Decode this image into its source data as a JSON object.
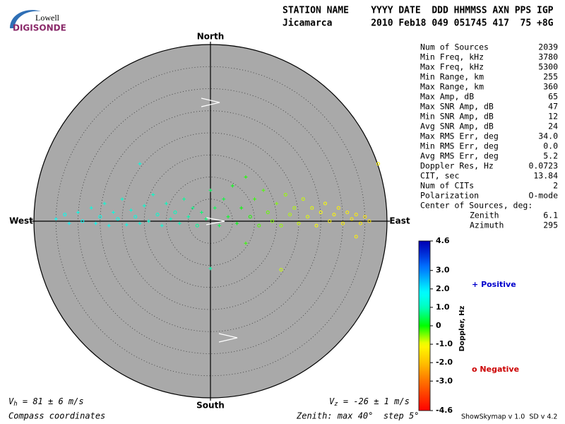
{
  "logo": {
    "top": "Lowell",
    "bottom": "DIGISONDE"
  },
  "header": {
    "labels": "STATION NAME    YYYY DATE  DDD HHMMSS AXN PPS IGP",
    "values": "Jicamarca       2010 Feb18 049 051745 417  75 +8G"
  },
  "stats": [
    [
      "Num of Sources",
      "2039"
    ],
    [
      "Min Freq, kHz",
      "3780"
    ],
    [
      "Max Freq, kHz",
      "5300"
    ],
    [
      "Min Range, km",
      "255"
    ],
    [
      "Max Range, km",
      "360"
    ],
    [
      "Max Amp, dB",
      "65"
    ],
    [
      "Max SNR Amp, dB",
      "47"
    ],
    [
      "Min SNR Amp, dB",
      "12"
    ],
    [
      "Avg SNR Amp, dB",
      "24"
    ],
    [
      "Max RMS Err, deg",
      "34.0"
    ],
    [
      "Min RMS Err, deg",
      "0.0"
    ],
    [
      "Avg RMS Err, deg",
      "5.2"
    ],
    [
      "Doppler Res, Hz",
      "0.0723"
    ],
    [
      "CIT, sec",
      "13.84"
    ],
    [
      "Num of CITs",
      "2"
    ],
    [
      "Polarization",
      "O-mode"
    ]
  ],
  "center": {
    "title": "Center of Sources, deg:",
    "rows": [
      [
        "Zenith",
        "6.1"
      ],
      [
        "Azimuth",
        "295"
      ]
    ]
  },
  "footer": {
    "left": "Compass coordinates",
    "middle": "Zenith: max 40°  step 5°",
    "right": "ShowSkymap v 1.0  SD v 4.2"
  },
  "chart_data": {
    "type": "skymap",
    "compass": {
      "north": "North",
      "south": "South",
      "west": "West",
      "east": "East"
    },
    "rlim": [
      0,
      40
    ],
    "rticks": [
      5,
      10,
      15,
      20,
      25,
      30,
      35
    ],
    "vh": {
      "symbol": "V",
      "sub": "h",
      "text": " = 81 ± 6 m/s"
    },
    "vz": {
      "symbol": "V",
      "sub": "z",
      "text": " = -26 ± 1 m/s"
    },
    "colorbar": {
      "title": "Doppler, Hz",
      "lim": [
        -4.6,
        4.6
      ],
      "ticks": [
        4.6,
        {
          "value": 3,
          "label": "3.0"
        },
        {
          "value": 2,
          "label": "2.0"
        },
        {
          "value": 1,
          "label": "1.0"
        },
        0,
        {
          "value": -1,
          "label": "-1.0"
        },
        {
          "value": -2,
          "label": "-2.0"
        },
        {
          "value": -3,
          "label": "-3.0"
        },
        -4.6
      ]
    },
    "series": [
      {
        "name": "Positive",
        "symbol": "+",
        "color": "#0000cc",
        "east": [
          -35,
          -32,
          -30,
          -27,
          -26,
          -24,
          -23,
          -22,
          -20,
          -19,
          -18,
          -16,
          -15,
          -14,
          -13,
          -11,
          -10,
          -9,
          -7,
          -6,
          -5,
          -4,
          -2,
          -1,
          -16,
          0,
          1,
          2,
          3,
          4,
          5,
          6,
          7,
          8,
          10,
          12,
          15,
          0,
          8
        ],
        "north": [
          0.5,
          -0.5,
          2,
          3,
          -0.5,
          4,
          -1,
          2,
          5,
          -0.8,
          2.5,
          -0.5,
          3.5,
          0,
          6,
          -1,
          4,
          0.5,
          -0.5,
          5,
          1,
          3,
          2,
          0.5,
          13,
          7,
          3,
          -1,
          5,
          1,
          8,
          -0.5,
          3,
          10,
          5,
          7,
          4,
          -10.7,
          -5
        ],
        "doppler": [
          1.7,
          1.8,
          1.5,
          1.4,
          1.6,
          1.3,
          1.6,
          1.4,
          1.2,
          1.5,
          1.3,
          1.4,
          1.2,
          1.3,
          1.1,
          1.3,
          1.0,
          1.1,
          1.0,
          0.8,
          0.9,
          0.7,
          0.6,
          0.6,
          1.4,
          0.5,
          0.4,
          0.4,
          0.3,
          0.2,
          0.1,
          0.1,
          0.0,
          -0.1,
          -0.2,
          -0.3,
          -0.5,
          0.9,
          -0.2
        ]
      },
      {
        "name": "Negative",
        "symbol": "o",
        "color": "#cc0000",
        "east": [
          -33,
          -29,
          -25,
          -21,
          -17,
          -12,
          -8,
          -3,
          9,
          11,
          13,
          14,
          16,
          17,
          18,
          19,
          20,
          21,
          22,
          23,
          24,
          25,
          26,
          27,
          28,
          29,
          30,
          31,
          32,
          33,
          34,
          35,
          36,
          38,
          16,
          33
        ],
        "north": [
          1.5,
          0,
          1,
          0.5,
          1,
          1.5,
          2,
          -1,
          1,
          -1,
          2,
          0,
          -1,
          6,
          1.5,
          3,
          -0.5,
          5,
          1,
          3,
          -1,
          2,
          4,
          0,
          1.5,
          3,
          -0.5,
          2,
          0.5,
          1.5,
          -0.5,
          1,
          0,
          13,
          -11,
          -3.5
        ],
        "doppler": [
          1.6,
          1.7,
          1.5,
          1.5,
          1.4,
          1.2,
          1.0,
          0.8,
          -0.1,
          -0.3,
          -0.4,
          -0.5,
          -0.6,
          -0.6,
          -0.7,
          -0.7,
          -0.8,
          -0.8,
          -0.9,
          -0.9,
          -1.0,
          -1.0,
          -1.0,
          -1.1,
          -1.1,
          -1.2,
          -1.2,
          -1.2,
          -1.3,
          -1.3,
          -1.3,
          -1.4,
          -1.4,
          -1.2,
          -0.8,
          -1.2
        ]
      }
    ]
  }
}
